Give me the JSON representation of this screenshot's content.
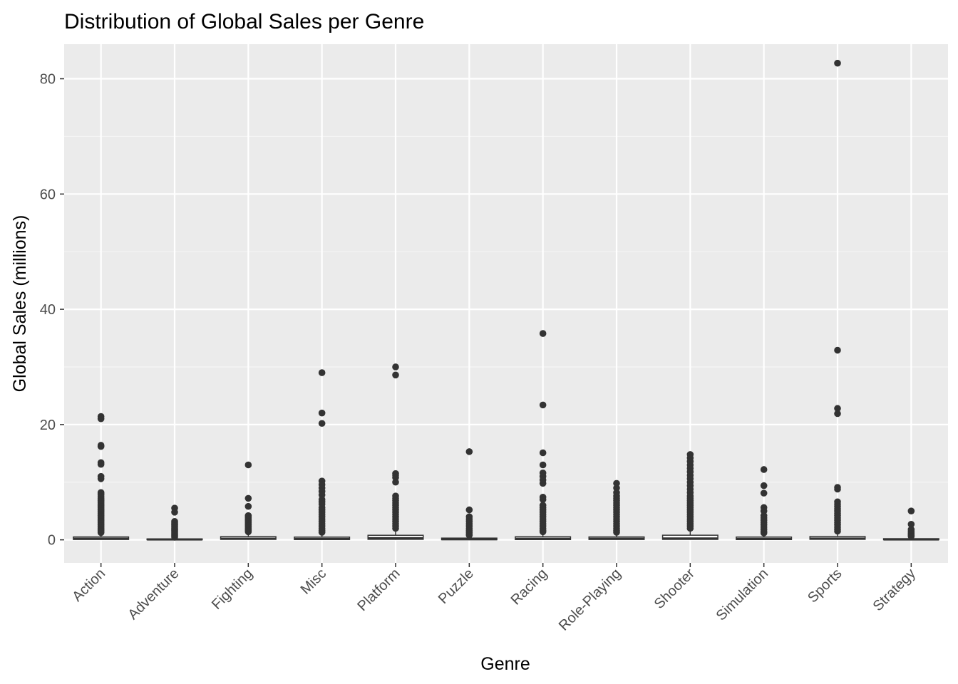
{
  "chart_data": {
    "type": "boxplot",
    "title": "Distribution of Global Sales per Genre",
    "xlabel": "Genre",
    "ylabel": "Global Sales (millions)",
    "ylim": [
      -4,
      86
    ],
    "yticks": [
      0,
      20,
      40,
      60,
      80
    ],
    "grid": true,
    "legend": "none",
    "colors": {
      "panel": "#ebebeb",
      "grid_major": "#ffffff",
      "grid_minor": "#f5f5f5",
      "box_fill": "#ffffff",
      "box_line": "#333333",
      "outlier": "#333333",
      "tick_text": "#4d4d4d"
    },
    "categories": [
      "Action",
      "Adventure",
      "Fighting",
      "Misc",
      "Platform",
      "Puzzle",
      "Racing",
      "Role-Playing",
      "Shooter",
      "Simulation",
      "Sports",
      "Strategy"
    ],
    "boxes": [
      {
        "genre": "Action",
        "q1": 0.07,
        "median": 0.19,
        "q3": 0.5,
        "whisker_low": 0.01,
        "whisker_high": 1.15,
        "outliers": [
          21.4,
          21.0,
          16.4,
          16.2,
          13.4,
          13.1,
          11.0,
          10.6,
          8.2,
          8.0,
          7.8,
          7.5,
          7.2,
          7.0,
          6.8,
          6.6,
          6.4,
          6.2,
          6.0,
          5.8,
          5.6,
          5.4,
          5.2,
          5.0,
          4.8,
          4.6,
          4.4,
          4.2,
          4.0,
          3.8,
          3.6,
          3.4,
          3.2,
          3.0,
          2.8,
          2.6,
          2.4,
          2.2,
          2.0,
          1.8,
          1.6,
          1.4,
          1.25
        ]
      },
      {
        "genre": "Adventure",
        "q1": 0.02,
        "median": 0.06,
        "q3": 0.16,
        "whisker_low": 0.01,
        "whisker_high": 0.37,
        "outliers": [
          5.5,
          4.8,
          3.2,
          3.0,
          2.8,
          2.6,
          2.4,
          2.2,
          2.0,
          1.8,
          1.6,
          1.4,
          1.2,
          1.0,
          0.8,
          0.6,
          0.45
        ]
      },
      {
        "genre": "Fighting",
        "q1": 0.08,
        "median": 0.21,
        "q3": 0.55,
        "whisker_low": 0.01,
        "whisker_high": 1.25,
        "outliers": [
          13.0,
          7.2,
          5.8,
          4.2,
          4.0,
          3.8,
          3.6,
          3.4,
          3.2,
          3.0,
          2.8,
          2.6,
          2.4,
          2.2,
          2.0,
          1.8,
          1.6,
          1.4
        ]
      },
      {
        "genre": "Misc",
        "q1": 0.06,
        "median": 0.16,
        "q3": 0.47,
        "whisker_low": 0.01,
        "whisker_high": 1.1,
        "outliers": [
          29.0,
          22.0,
          20.2,
          10.2,
          9.6,
          9.0,
          8.4,
          7.8,
          7.0,
          6.6,
          6.2,
          5.6,
          5.2,
          4.8,
          4.4,
          4.0,
          3.6,
          3.2,
          2.8,
          2.4,
          2.0,
          1.6,
          1.3
        ]
      },
      {
        "genre": "Platform",
        "q1": 0.09,
        "median": 0.28,
        "q3": 0.79,
        "whisker_low": 0.01,
        "whisker_high": 1.8,
        "outliers": [
          30.0,
          28.6,
          11.5,
          11.2,
          10.8,
          10.0,
          7.6,
          7.2,
          6.8,
          6.4,
          6.0,
          5.6,
          5.2,
          4.8,
          4.4,
          4.0,
          3.6,
          3.2,
          2.8,
          2.4,
          2.0
        ]
      },
      {
        "genre": "Puzzle",
        "q1": 0.02,
        "median": 0.11,
        "q3": 0.3,
        "whisker_low": 0.01,
        "whisker_high": 0.72,
        "outliers": [
          15.3,
          5.2,
          4.0,
          3.6,
          3.2,
          2.8,
          2.4,
          2.0,
          1.6,
          1.3,
          1.0,
          0.8
        ]
      },
      {
        "genre": "Racing",
        "q1": 0.05,
        "median": 0.19,
        "q3": 0.53,
        "whisker_low": 0.01,
        "whisker_high": 1.25,
        "outliers": [
          35.8,
          23.4,
          15.1,
          13.0,
          11.6,
          11.0,
          10.4,
          9.8,
          7.4,
          7.0,
          6.0,
          5.6,
          5.2,
          4.8,
          4.4,
          4.0,
          3.6,
          3.2,
          2.8,
          2.4,
          2.0,
          1.6,
          1.4
        ]
      },
      {
        "genre": "Role-Playing",
        "q1": 0.07,
        "median": 0.19,
        "q3": 0.5,
        "whisker_low": 0.01,
        "whisker_high": 1.14,
        "outliers": [
          9.8,
          9.0,
          8.2,
          7.6,
          7.2,
          6.8,
          6.4,
          6.0,
          5.6,
          5.2,
          4.8,
          4.4,
          4.0,
          3.6,
          3.2,
          2.8,
          2.4,
          2.0,
          1.6,
          1.3
        ]
      },
      {
        "genre": "Shooter",
        "q1": 0.08,
        "median": 0.23,
        "q3": 0.8,
        "whisker_low": 0.01,
        "whisker_high": 1.85,
        "outliers": [
          14.8,
          14.2,
          13.6,
          13.0,
          12.4,
          11.8,
          11.2,
          10.6,
          10.0,
          9.4,
          8.8,
          8.2,
          7.6,
          7.2,
          6.8,
          6.4,
          6.0,
          5.6,
          5.2,
          4.8,
          4.4,
          4.0,
          3.6,
          3.2,
          2.8,
          2.4,
          2.0
        ]
      },
      {
        "genre": "Simulation",
        "q1": 0.05,
        "median": 0.16,
        "q3": 0.48,
        "whisker_low": 0.01,
        "whisker_high": 1.1,
        "outliers": [
          12.2,
          9.4,
          8.1,
          5.6,
          5.0,
          4.2,
          3.8,
          3.4,
          3.0,
          2.6,
          2.2,
          1.8,
          1.4,
          1.2
        ]
      },
      {
        "genre": "Sports",
        "q1": 0.09,
        "median": 0.22,
        "q3": 0.57,
        "whisker_low": 0.01,
        "whisker_high": 1.3,
        "outliers": [
          82.7,
          32.9,
          22.8,
          21.9,
          9.1,
          8.8,
          6.6,
          6.2,
          5.8,
          5.4,
          5.0,
          4.6,
          4.2,
          3.8,
          3.4,
          3.0,
          2.6,
          2.2,
          1.8,
          1.5
        ]
      },
      {
        "genre": "Strategy",
        "q1": 0.02,
        "median": 0.06,
        "q3": 0.2,
        "whisker_low": 0.01,
        "whisker_high": 0.47,
        "outliers": [
          5.0,
          2.7,
          1.8,
          1.5,
          1.2,
          1.0,
          0.8,
          0.6
        ]
      }
    ]
  }
}
